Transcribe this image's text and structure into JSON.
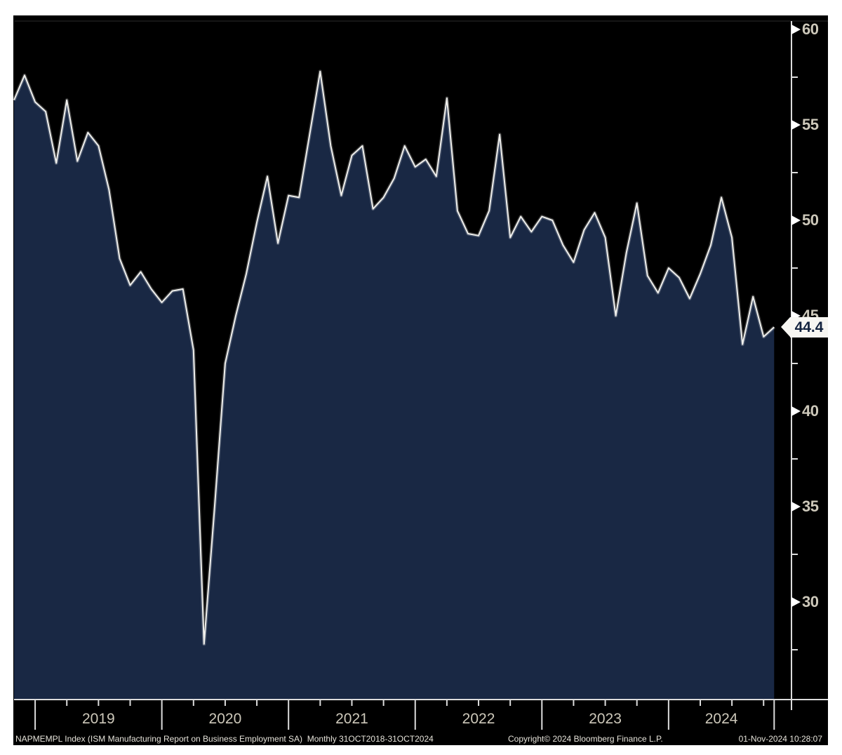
{
  "chart_data": {
    "type": "area",
    "series_name": "NAPMEMPL Index (ISM Manufacturing Report on Business Employment SA)",
    "frequency": "Monthly",
    "period": "31OCT2018-31OCT2024",
    "months": [
      "2018-10",
      "2018-11",
      "2018-12",
      "2019-01",
      "2019-02",
      "2019-03",
      "2019-04",
      "2019-05",
      "2019-06",
      "2019-07",
      "2019-08",
      "2019-09",
      "2019-10",
      "2019-11",
      "2019-12",
      "2020-01",
      "2020-02",
      "2020-03",
      "2020-04",
      "2020-05",
      "2020-06",
      "2020-07",
      "2020-08",
      "2020-09",
      "2020-10",
      "2020-11",
      "2020-12",
      "2021-01",
      "2021-02",
      "2021-03",
      "2021-04",
      "2021-05",
      "2021-06",
      "2021-07",
      "2021-08",
      "2021-09",
      "2021-10",
      "2021-11",
      "2021-12",
      "2022-01",
      "2022-02",
      "2022-03",
      "2022-04",
      "2022-05",
      "2022-06",
      "2022-07",
      "2022-08",
      "2022-09",
      "2022-10",
      "2022-11",
      "2022-12",
      "2023-01",
      "2023-02",
      "2023-03",
      "2023-04",
      "2023-05",
      "2023-06",
      "2023-07",
      "2023-08",
      "2023-09",
      "2023-10",
      "2023-11",
      "2023-12",
      "2024-01",
      "2024-02",
      "2024-03",
      "2024-04",
      "2024-05",
      "2024-06",
      "2024-07",
      "2024-08",
      "2024-09",
      "2024-10"
    ],
    "values": [
      56.3,
      57.6,
      56.2,
      55.7,
      53.0,
      56.3,
      53.1,
      54.6,
      53.9,
      51.6,
      48.0,
      46.6,
      47.3,
      46.4,
      45.7,
      46.3,
      46.4,
      43.2,
      27.8,
      35.0,
      42.5,
      45.0,
      47.2,
      49.9,
      52.3,
      48.8,
      51.3,
      51.2,
      54.5,
      57.8,
      53.9,
      51.3,
      53.4,
      53.9,
      50.6,
      51.2,
      52.2,
      53.9,
      52.8,
      53.2,
      52.3,
      56.4,
      50.5,
      49.3,
      49.2,
      50.5,
      54.5,
      49.1,
      50.2,
      49.4,
      50.2,
      50.0,
      48.7,
      47.8,
      49.5,
      50.4,
      49.1,
      45.0,
      48.3,
      50.9,
      47.1,
      46.2,
      47.5,
      47.0,
      45.9,
      47.2,
      48.7,
      51.2,
      49.1,
      43.5,
      46.0,
      43.9,
      44.4
    ],
    "last_value": 44.4,
    "last_value_label": "44.4",
    "y_axis": {
      "side": "right",
      "major_ticks": [
        60,
        55,
        50,
        45,
        40,
        35,
        30
      ],
      "minor_ticks": [
        57.5,
        52.5,
        47.5,
        42.5,
        37.5,
        32.5,
        27.5
      ]
    },
    "x_axis": {
      "year_labels": [
        "2019",
        "2020",
        "2021",
        "2022",
        "2023",
        "2024"
      ],
      "minor_tick_interval": "quarterly"
    },
    "colors": {
      "background": "#000000",
      "area_fill": "#192844",
      "line": "#efefec",
      "axis": "#dcdcdc",
      "tick_label": "#cdc8ba",
      "tag_background": "#f7f6f2",
      "tag_text": "#12223e"
    }
  },
  "footer": {
    "left": "NAPMEMPL Index (ISM Manufacturing Report on Business Employment SA)  Monthly 31OCT2018-31OCT2024",
    "copyright": "Copyright© 2024 Bloomberg Finance L.P.",
    "timestamp": "01-Nov-2024 10:28:07"
  }
}
